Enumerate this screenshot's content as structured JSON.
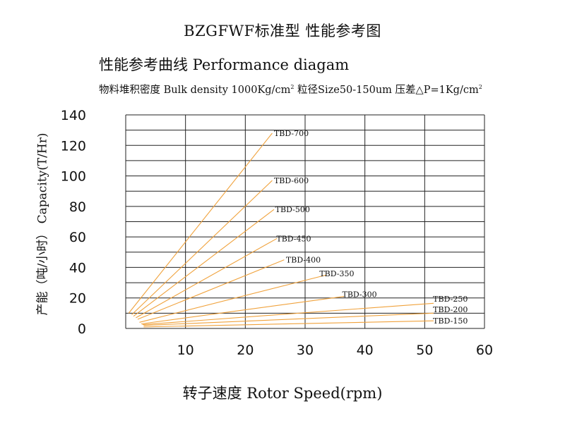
{
  "header": {
    "title": "BZGFWF标准型 性能参考图",
    "subtitle": "性能参考曲线 Performance diagam",
    "spec_prefix": "物料堆积密度 Bulk density 1000Kg/cm",
    "spec_sup1": "2",
    "spec_middle": " 粒径Size50-150um 压差△P=1Kg/cm",
    "spec_sup2": "2"
  },
  "chart_data": {
    "type": "line",
    "title": "BZGFWF标准型 性能参考图",
    "ylabel": "产能（吨/小时） Capacity(T/Hr)",
    "xlabel": "转子速度 Rotor Speed(rpm)",
    "xlim": [
      0,
      60
    ],
    "ylim": [
      0,
      140
    ],
    "x_ticks": [
      "10",
      "20",
      "30",
      "40",
      "50",
      "60"
    ],
    "y_ticks": [
      "0",
      "20",
      "40",
      "60",
      "80",
      "100",
      "120",
      "140"
    ],
    "grid": true,
    "line_color": "#f0a23c",
    "series": [
      {
        "name": "TBD-700",
        "x": [
          0.5,
          24.5
        ],
        "y": [
          10,
          128
        ]
      },
      {
        "name": "TBD-600",
        "x": [
          1,
          24.5
        ],
        "y": [
          9,
          97
        ]
      },
      {
        "name": "TBD-500",
        "x": [
          1.3,
          24.8
        ],
        "y": [
          8,
          78
        ]
      },
      {
        "name": "TBD-450",
        "x": [
          1.7,
          25.3
        ],
        "y": [
          7,
          59
        ]
      },
      {
        "name": "TBD-400",
        "x": [
          2,
          26.5
        ],
        "y": [
          6,
          45
        ]
      },
      {
        "name": "TBD-350",
        "x": [
          2.3,
          33.5
        ],
        "y": [
          4,
          35
        ]
      },
      {
        "name": "TBD-300",
        "x": [
          2.6,
          36.5
        ],
        "y": [
          3,
          21
        ]
      },
      {
        "name": "TBD-250",
        "x": [
          2.8,
          51.5
        ],
        "y": [
          2.5,
          16.5
        ]
      },
      {
        "name": "TBD-200",
        "x": [
          3,
          51.5
        ],
        "y": [
          2,
          10
        ]
      },
      {
        "name": "TBD-150",
        "x": [
          3,
          51.5
        ],
        "y": [
          1,
          5
        ]
      }
    ],
    "series_labels": [
      {
        "text": "TBD-700",
        "x": 24.8,
        "y": 128
      },
      {
        "text": "TBD-600",
        "x": 24.8,
        "y": 97
      },
      {
        "text": "TBD-500",
        "x": 25.0,
        "y": 78
      },
      {
        "text": "TBD-450",
        "x": 25.2,
        "y": 59
      },
      {
        "text": "TBD-400",
        "x": 26.8,
        "y": 45
      },
      {
        "text": "TBD-350",
        "x": 32.4,
        "y": 36
      },
      {
        "text": "TBD-300",
        "x": 36.2,
        "y": 22.5
      },
      {
        "text": "TBD-250",
        "x": 51.4,
        "y": 19.5
      },
      {
        "text": "TBD-200",
        "x": 51.4,
        "y": 12.5
      },
      {
        "text": "TBD-150",
        "x": 51.4,
        "y": 5
      }
    ]
  }
}
